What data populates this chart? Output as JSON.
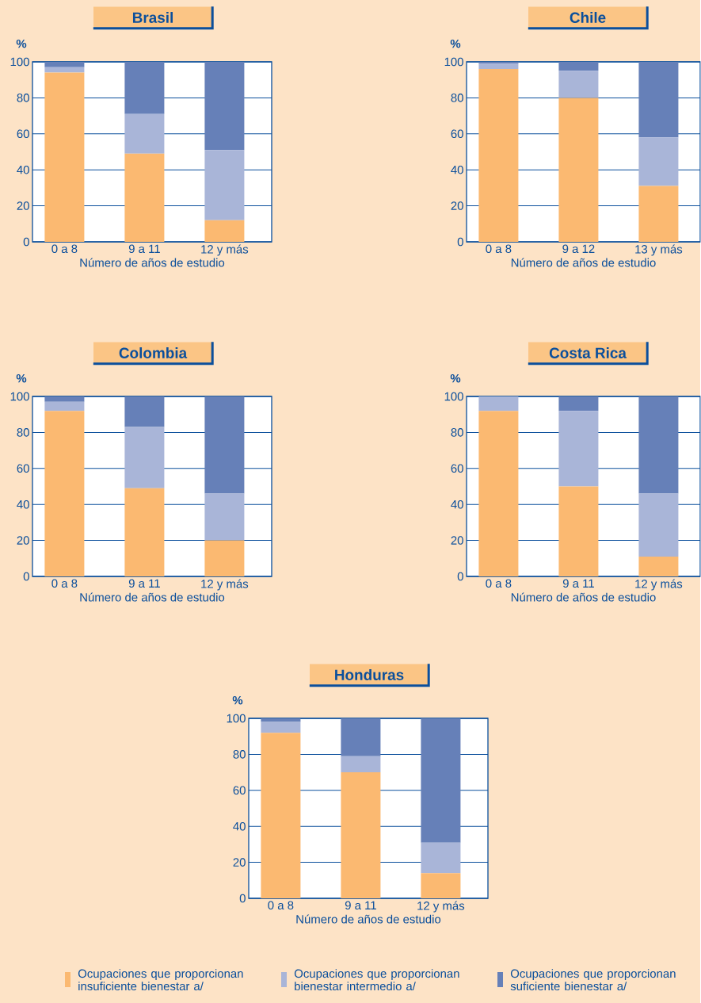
{
  "chart_data": [
    {
      "type": "bar",
      "stacked": true,
      "title": "Brasil",
      "xlabel": "Número de años de estudio",
      "ylabel": "%",
      "categories": [
        "0 a 8",
        "9 a 11",
        "12 y más"
      ],
      "ylim": [
        0,
        100
      ],
      "yticks": [
        0,
        20,
        40,
        60,
        80,
        100
      ],
      "grid": "y",
      "series": [
        {
          "color": "#fbb971",
          "values": [
            94,
            49,
            12
          ]
        },
        {
          "color": "#a9b5d8",
          "values": [
            3,
            22,
            39
          ]
        },
        {
          "color": "#6680b8",
          "values": [
            3,
            29,
            49
          ]
        }
      ]
    },
    {
      "type": "bar",
      "stacked": true,
      "title": "Chile",
      "xlabel": "Número de años de estudio",
      "ylabel": "%",
      "categories": [
        "0 a 8",
        "9 a 12",
        "13 y más"
      ],
      "ylim": [
        0,
        100
      ],
      "yticks": [
        0,
        20,
        40,
        60,
        80,
        100
      ],
      "grid": "y",
      "series": [
        {
          "color": "#fbb971",
          "values": [
            96,
            80,
            31
          ]
        },
        {
          "color": "#a9b5d8",
          "values": [
            3,
            15,
            27
          ]
        },
        {
          "color": "#6680b8",
          "values": [
            1,
            5,
            42
          ]
        }
      ]
    },
    {
      "type": "bar",
      "stacked": true,
      "title": "Colombia",
      "xlabel": "Número de años de estudio",
      "ylabel": "%",
      "categories": [
        "0 a 8",
        "9 a 11",
        "12 y más"
      ],
      "ylim": [
        0,
        100
      ],
      "yticks": [
        0,
        20,
        40,
        60,
        80,
        100
      ],
      "grid": "y",
      "series": [
        {
          "color": "#fbb971",
          "values": [
            92,
            49,
            20
          ]
        },
        {
          "color": "#a9b5d8",
          "values": [
            5,
            34,
            26
          ]
        },
        {
          "color": "#6680b8",
          "values": [
            3,
            17,
            54
          ]
        }
      ]
    },
    {
      "type": "bar",
      "stacked": true,
      "title": "Costa Rica",
      "xlabel": "Número de años de estudio",
      "ylabel": "%",
      "categories": [
        "0 a 8",
        "9 a 11",
        "12 y más"
      ],
      "ylim": [
        0,
        100
      ],
      "yticks": [
        0,
        20,
        40,
        60,
        80,
        100
      ],
      "grid": "y",
      "series": [
        {
          "color": "#fbb971",
          "values": [
            92,
            50,
            11
          ]
        },
        {
          "color": "#a9b5d8",
          "values": [
            8,
            42,
            35
          ]
        },
        {
          "color": "#6680b8",
          "values": [
            0,
            8,
            54
          ]
        }
      ]
    },
    {
      "type": "bar",
      "stacked": true,
      "title": "Honduras",
      "xlabel": "Número de años de estudio",
      "ylabel": "%",
      "categories": [
        "0 a 8",
        "9 a 11",
        "12 y más"
      ],
      "ylim": [
        0,
        100
      ],
      "yticks": [
        0,
        20,
        40,
        60,
        80,
        100
      ],
      "grid": "y",
      "legend": "bottom",
      "series": [
        {
          "name": "Ocupaciones que proporcionan insuficiente bienestar a/",
          "color": "#fbb971",
          "values": [
            92,
            70,
            14
          ]
        },
        {
          "name": "Ocupaciones que proporcionan bienestar intermedio a/",
          "color": "#a9b5d8",
          "values": [
            6,
            9,
            17
          ]
        },
        {
          "name": "Ocupaciones que proporcionan suficiente bienestar a/",
          "color": "#6680b8",
          "values": [
            2,
            21,
            69
          ]
        }
      ]
    }
  ]
}
